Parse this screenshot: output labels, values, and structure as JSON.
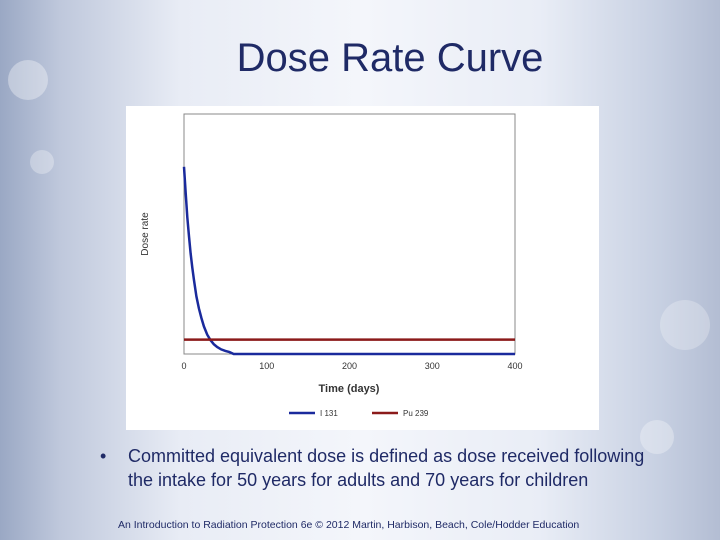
{
  "slide": {
    "title": "Dose Rate Curve",
    "bullet": "Committed equivalent dose is defined as dose received following the intake for 50 years for adults and 70 years for children",
    "footer": "An Introduction to Radiation Protection 6e © 2012 Martin, Harbison, Beach, Cole/Hodder Education"
  },
  "chart_data": {
    "type": "line",
    "title": "",
    "xlabel": "Time (days)",
    "ylabel": "Dose rate",
    "xlim": [
      0,
      400
    ],
    "ylim": [
      0,
      100
    ],
    "x_ticks": [
      0,
      100,
      200,
      300,
      400
    ],
    "grid": false,
    "legend_position": "bottom",
    "series": [
      {
        "name": "I 131",
        "color": "#1a2a9c",
        "x": [
          0,
          2,
          4,
          6,
          8,
          10,
          12,
          15,
          18,
          21,
          24,
          28,
          32,
          36,
          40,
          45,
          50,
          55,
          60,
          400
        ],
        "y": [
          78,
          67,
          57,
          49,
          42,
          36,
          31,
          24,
          19,
          15,
          11.5,
          8.1,
          5.8,
          4.1,
          2.9,
          1.9,
          1.3,
          0.8,
          0,
          0
        ]
      },
      {
        "name": "Pu 239",
        "color": "#8b1a1a",
        "x": [
          0,
          400
        ],
        "y": [
          6,
          6
        ]
      }
    ]
  }
}
